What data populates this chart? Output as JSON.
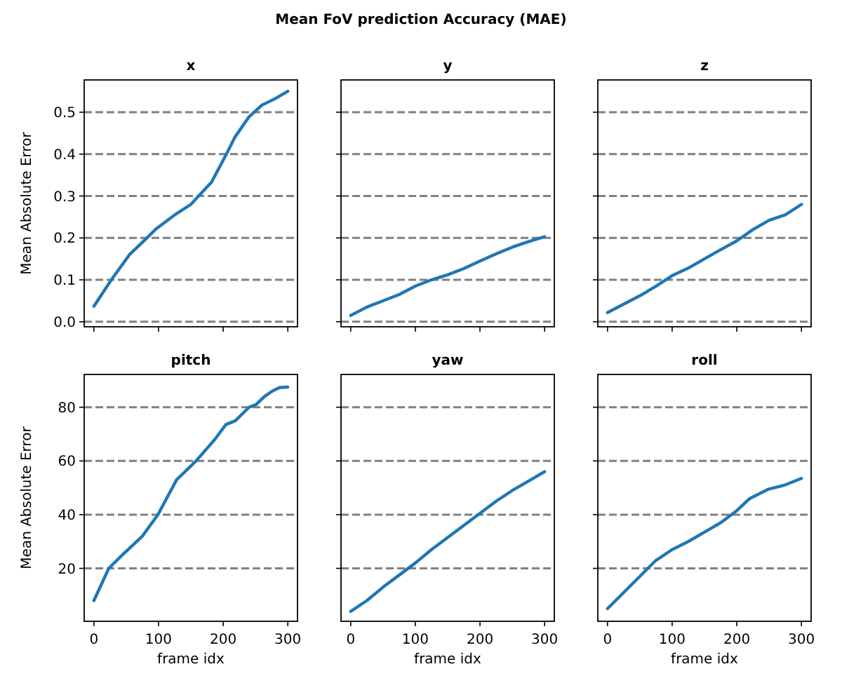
{
  "chart_data": [
    {
      "type": "line",
      "title": "x",
      "annotations": [
        "Mean FoV prediction Accuracy (MAE)"
      ],
      "ylabel": "Mean Absolute Error",
      "xlim": [
        -15,
        315
      ],
      "ylim": [
        -0.012,
        0.577
      ],
      "xticks": [
        {
          "value": 0,
          "label": null
        },
        {
          "value": 100,
          "label": null
        },
        {
          "value": 200,
          "label": null
        },
        {
          "value": 300,
          "label": null
        }
      ],
      "yticks": [
        {
          "value": 0,
          "label": "0.0"
        },
        0.1,
        0.2,
        0.3,
        0.4,
        0.5
      ],
      "grid": "y",
      "tick_labels": "y",
      "series": [
        {
          "color": "#1f77b4",
          "x": [
            0,
            27,
            55,
            82,
            95,
            125,
            150,
            182,
            205,
            218,
            240,
            260,
            280,
            300
          ],
          "values": [
            0.037,
            0.1,
            0.16,
            0.2,
            0.22,
            0.255,
            0.28,
            0.333,
            0.4,
            0.44,
            0.489,
            0.517,
            0.532,
            0.55
          ]
        }
      ]
    },
    {
      "type": "line",
      "title": "y",
      "xlim": [
        -15,
        315
      ],
      "ylim": [
        -0.012,
        0.577
      ],
      "xticks": [
        {
          "value": 0,
          "label": null
        },
        {
          "value": 100,
          "label": null
        },
        {
          "value": 200,
          "label": null
        },
        {
          "value": 300,
          "label": null
        }
      ],
      "yticks": [
        {
          "value": 0,
          "label": null
        },
        {
          "value": 0.1,
          "label": null
        },
        {
          "value": 0.2,
          "label": null
        },
        {
          "value": 0.3,
          "label": null
        },
        {
          "value": 0.4,
          "label": null
        },
        {
          "value": 0.5,
          "label": null
        }
      ],
      "grid": "y",
      "tick_labels": false,
      "series": [
        {
          "color": "#1f77b4",
          "x": [
            0,
            25,
            50,
            75,
            100,
            125,
            150,
            175,
            200,
            225,
            250,
            275,
            300
          ],
          "values": [
            0.015,
            0.035,
            0.05,
            0.065,
            0.085,
            0.1,
            0.112,
            0.127,
            0.145,
            0.162,
            0.178,
            0.191,
            0.203
          ]
        }
      ]
    },
    {
      "type": "line",
      "title": "z",
      "xlim": [
        -15,
        315
      ],
      "ylim": [
        -0.012,
        0.577
      ],
      "xticks": [
        {
          "value": 0,
          "label": null
        },
        {
          "value": 100,
          "label": null
        },
        {
          "value": 200,
          "label": null
        },
        {
          "value": 300,
          "label": null
        }
      ],
      "yticks": [
        {
          "value": 0,
          "label": null
        },
        {
          "value": 0.1,
          "label": null
        },
        {
          "value": 0.2,
          "label": null
        },
        {
          "value": 0.3,
          "label": null
        },
        {
          "value": 0.4,
          "label": null
        },
        {
          "value": 0.5,
          "label": null
        }
      ],
      "grid": "y",
      "tick_labels": false,
      "series": [
        {
          "color": "#1f77b4",
          "x": [
            0,
            25,
            50,
            75,
            100,
            125,
            150,
            175,
            200,
            225,
            250,
            275,
            300
          ],
          "values": [
            0.022,
            0.042,
            0.062,
            0.085,
            0.11,
            0.128,
            0.15,
            0.172,
            0.193,
            0.22,
            0.242,
            0.255,
            0.28
          ]
        }
      ]
    },
    {
      "type": "line",
      "title": "pitch",
      "xlabel": "frame idx",
      "ylabel": "Mean Absolute Error",
      "xlim": [
        -15,
        315
      ],
      "ylim": [
        0.3,
        92.2
      ],
      "xticks": [
        0,
        100,
        200,
        300
      ],
      "yticks": [
        20,
        40,
        60,
        80
      ],
      "grid": "y",
      "series": [
        {
          "color": "#1f77b4",
          "x": [
            0,
            23,
            44,
            75,
            99,
            128,
            158,
            187,
            204,
            219,
            240,
            251,
            264,
            276,
            287,
            300
          ],
          "values": [
            8,
            20,
            25,
            32,
            40,
            53,
            60,
            68,
            73.5,
            75,
            80,
            81,
            84,
            86,
            87.3,
            87.5
          ]
        }
      ]
    },
    {
      "type": "line",
      "title": "yaw",
      "xlabel": "frame idx",
      "xlim": [
        -15,
        315
      ],
      "ylim": [
        0.3,
        92.2
      ],
      "xticks": [
        0,
        100,
        200,
        300
      ],
      "yticks": [
        {
          "value": 20,
          "label": null
        },
        {
          "value": 40,
          "label": null
        },
        {
          "value": 60,
          "label": null
        },
        {
          "value": 80,
          "label": null
        }
      ],
      "grid": "y",
      "tick_labels": "x",
      "series": [
        {
          "color": "#1f77b4",
          "x": [
            0,
            25,
            50,
            75,
            100,
            125,
            150,
            175,
            200,
            225,
            250,
            275,
            300
          ],
          "values": [
            4,
            8,
            13,
            17.5,
            22,
            27,
            31.5,
            36,
            40.5,
            45,
            49,
            52.5,
            56
          ]
        }
      ]
    },
    {
      "type": "line",
      "title": "roll",
      "xlabel": "frame idx",
      "xlim": [
        -15,
        315
      ],
      "ylim": [
        0.3,
        92.2
      ],
      "xticks": [
        0,
        100,
        200,
        300
      ],
      "yticks": [
        {
          "value": 20,
          "label": null
        },
        {
          "value": 40,
          "label": null
        },
        {
          "value": 60,
          "label": null
        },
        {
          "value": 80,
          "label": null
        }
      ],
      "grid": "y",
      "tick_labels": "x",
      "series": [
        {
          "color": "#1f77b4",
          "x": [
            0,
            25,
            50,
            75,
            100,
            125,
            150,
            175,
            200,
            220,
            249,
            274,
            300
          ],
          "values": [
            5,
            11,
            17,
            23,
            27,
            30,
            33.5,
            37,
            41.5,
            46,
            49.5,
            51,
            53.5
          ]
        }
      ]
    }
  ]
}
